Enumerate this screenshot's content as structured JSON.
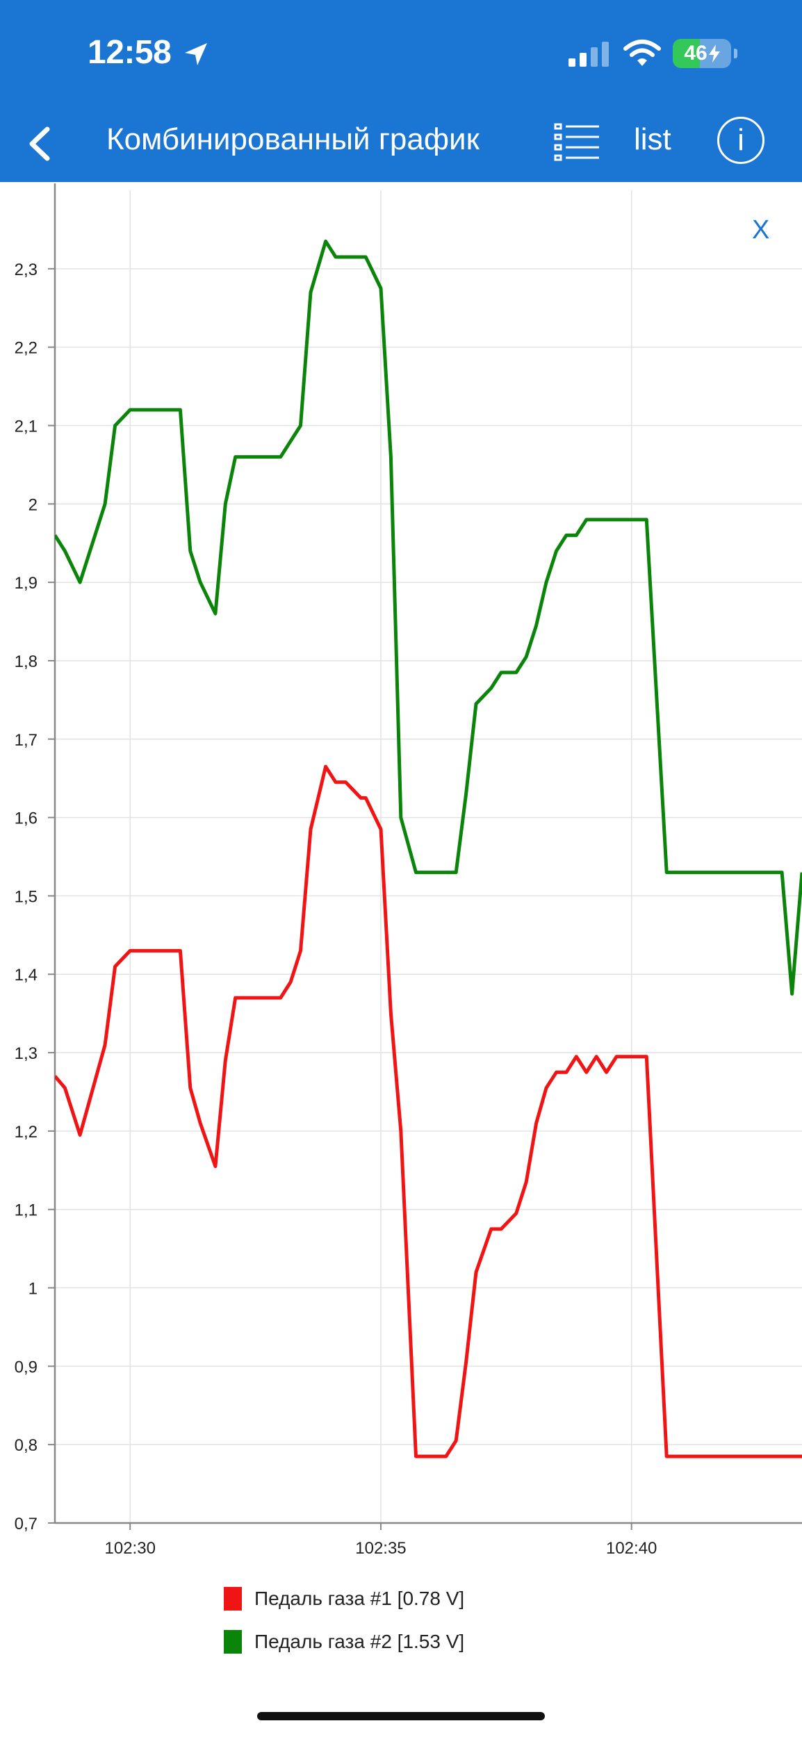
{
  "status_bar": {
    "time": "12:58",
    "battery_level": "46",
    "battery_fraction": 0.46,
    "location_icon": "location-arrow-icon",
    "signal_icon": "cellular-signal-icon",
    "wifi_icon": "wifi-icon",
    "charging_icon": "bolt-icon"
  },
  "app_bar": {
    "title": "Комбинированный график",
    "back_icon": "chevron-left-icon",
    "list_icon": "list-icon",
    "list_label": "list",
    "info_label": "i"
  },
  "close_label": "X",
  "colors": {
    "header": "#1a76d2",
    "series1": "#f01414",
    "series2": "#0a850a"
  },
  "chart_data": {
    "type": "line",
    "title": "",
    "xlabel": "",
    "ylabel": "",
    "xlim": [
      "102:28.5",
      "102:43.4"
    ],
    "ylim": [
      0.7,
      2.4
    ],
    "y_ticks": [
      "0,7",
      "0,8",
      "0,9",
      "1",
      "1,1",
      "1,2",
      "1,3",
      "1,4",
      "1,5",
      "1,6",
      "1,7",
      "1,8",
      "1,9",
      "2",
      "2,1",
      "2,2",
      "2,3"
    ],
    "x_ticks": [
      "102:30",
      "102:35",
      "102:40"
    ],
    "grid": true,
    "legend_position": "bottom",
    "series": [
      {
        "name": "Педаль газа #1 [0.78 V]",
        "x": [
          "102:28.5",
          "102:28.7",
          "102:29.0",
          "102:29.5",
          "102:29.7",
          "102:30.0",
          "102:31.0",
          "102:31.2",
          "102:31.4",
          "102:31.7",
          "102:31.9",
          "102:32.1",
          "102:33.0",
          "102:33.2",
          "102:33.4",
          "102:33.6",
          "102:33.9",
          "102:34.1",
          "102:34.3",
          "102:34.6",
          "102:34.7",
          "102:35.0",
          "102:35.2",
          "102:35.4",
          "102:35.7",
          "102:36.3",
          "102:36.5",
          "102:36.7",
          "102:36.9",
          "102:37.2",
          "102:37.4",
          "102:37.7",
          "102:37.9",
          "102:38.1",
          "102:38.3",
          "102:38.5",
          "102:38.7",
          "102:38.9",
          "102:39.1",
          "102:39.3",
          "102:39.5",
          "102:39.7",
          "102:39.9",
          "102:40.1",
          "102:40.3",
          "102:40.7",
          "102:43.4"
        ],
        "values": [
          1.27,
          1.255,
          1.195,
          1.31,
          1.41,
          1.43,
          1.43,
          1.255,
          1.21,
          1.155,
          1.29,
          1.37,
          1.37,
          1.39,
          1.43,
          1.585,
          1.665,
          1.645,
          1.645,
          1.625,
          1.625,
          1.585,
          1.35,
          1.2,
          0.785,
          0.785,
          0.805,
          0.905,
          1.02,
          1.075,
          1.075,
          1.095,
          1.135,
          1.21,
          1.255,
          1.275,
          1.275,
          1.295,
          1.275,
          1.295,
          1.275,
          1.295,
          1.295,
          1.295,
          1.295,
          0.785,
          0.785
        ]
      },
      {
        "name": "Педаль газа #2 [1.53 V]",
        "x": [
          "102:28.5",
          "102:28.7",
          "102:29.0",
          "102:29.2",
          "102:29.5",
          "102:29.7",
          "102:30.0",
          "102:31.0",
          "102:31.2",
          "102:31.4",
          "102:31.7",
          "102:31.9",
          "102:32.1",
          "102:33.0",
          "102:33.2",
          "102:33.4",
          "102:33.6",
          "102:33.9",
          "102:34.1",
          "102:34.3",
          "102:34.6",
          "102:34.7",
          "102:35.0",
          "102:35.2",
          "102:35.4",
          "102:35.7",
          "102:36.3",
          "102:36.5",
          "102:36.7",
          "102:36.9",
          "102:37.2",
          "102:37.4",
          "102:37.7",
          "102:37.9",
          "102:38.1",
          "102:38.3",
          "102:38.5",
          "102:38.7",
          "102:38.9",
          "102:39.1",
          "102:39.3",
          "102:39.5",
          "102:39.7",
          "102:39.9",
          "102:40.1",
          "102:40.3",
          "102:40.7",
          "102:43.0",
          "102:43.2",
          "102:43.4"
        ],
        "values": [
          1.96,
          1.94,
          1.9,
          1.94,
          2.0,
          2.1,
          2.12,
          2.12,
          1.94,
          1.9,
          1.86,
          2.0,
          2.06,
          2.06,
          2.08,
          2.1,
          2.27,
          2.335,
          2.315,
          2.315,
          2.315,
          2.315,
          2.275,
          2.06,
          1.6,
          1.53,
          1.53,
          1.53,
          1.63,
          1.745,
          1.765,
          1.785,
          1.785,
          1.805,
          1.845,
          1.9,
          1.94,
          1.96,
          1.96,
          1.98,
          1.98,
          1.98,
          1.98,
          1.98,
          1.98,
          1.98,
          1.53,
          1.53,
          1.375,
          1.53
        ]
      }
    ]
  }
}
